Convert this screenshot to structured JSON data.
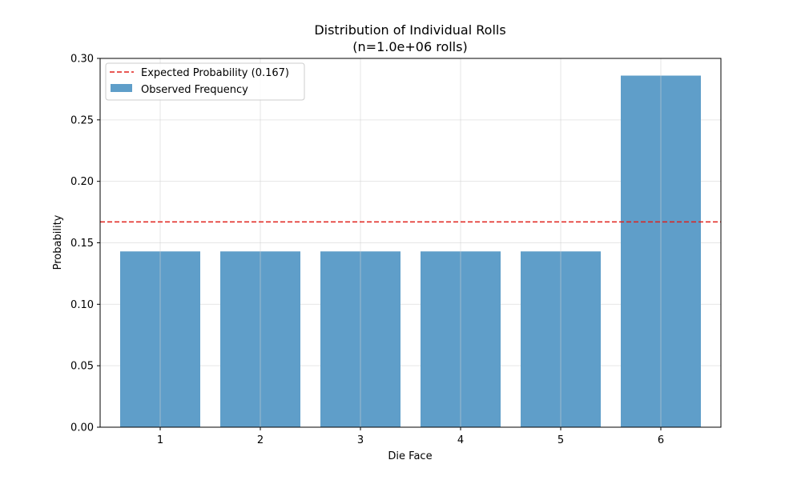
{
  "chart_data": {
    "type": "bar",
    "title": "Distribution of Individual Rolls",
    "subtitle": "(n=1.0e+06 rolls)",
    "xlabel": "Die Face",
    "ylabel": "Probability",
    "categories": [
      "1",
      "2",
      "3",
      "4",
      "5",
      "6"
    ],
    "series": [
      {
        "name": "Observed Frequency",
        "values": [
          0.143,
          0.143,
          0.143,
          0.143,
          0.143,
          0.286
        ],
        "color": "#5f9ec9"
      }
    ],
    "reference_lines": [
      {
        "name": "Expected Probability (0.167)",
        "value": 0.167,
        "color": "#e0201b",
        "style": "dashed"
      }
    ],
    "ylim": [
      0,
      0.3
    ],
    "yticks": [
      "0.00",
      "0.05",
      "0.10",
      "0.15",
      "0.20",
      "0.25",
      "0.30"
    ],
    "grid": true,
    "legend_position": "top-left"
  }
}
